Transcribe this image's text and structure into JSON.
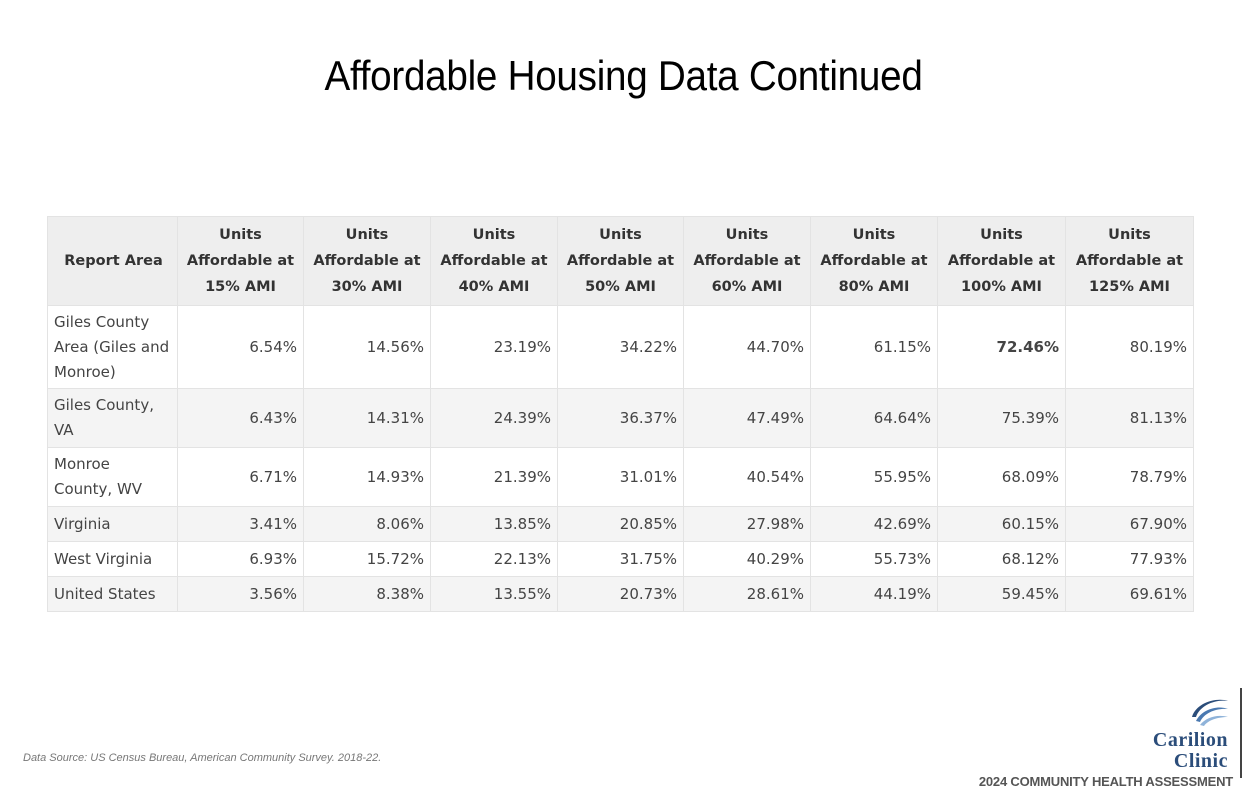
{
  "title": "Affordable Housing Data Continued",
  "table": {
    "headers": [
      "Report Area",
      "Units Affordable at 15% AMI",
      "Units Affordable at 30% AMI",
      "Units Affordable at 40% AMI",
      "Units Affordable at 50% AMI",
      "Units Affordable at 60% AMI",
      "Units Affordable at 80% AMI",
      "Units Affordable at 100% AMI",
      "Units Affordable at 125% AMI"
    ],
    "rows": [
      [
        "Giles County Area (Giles and Monroe)",
        "6.54%",
        "14.56%",
        "23.19%",
        "34.22%",
        "44.70%",
        "61.15%",
        "72.46%",
        "80.19%"
      ],
      [
        "Giles County, VA",
        "6.43%",
        "14.31%",
        "24.39%",
        "36.37%",
        "47.49%",
        "64.64%",
        "75.39%",
        "81.13%"
      ],
      [
        "Monroe County, WV",
        "6.71%",
        "14.93%",
        "21.39%",
        "31.01%",
        "40.54%",
        "55.95%",
        "68.09%",
        "78.79%"
      ],
      [
        "Virginia",
        "3.41%",
        "8.06%",
        "13.85%",
        "20.85%",
        "27.98%",
        "42.69%",
        "60.15%",
        "67.90%"
      ],
      [
        "West Virginia",
        "6.93%",
        "15.72%",
        "22.13%",
        "31.75%",
        "40.29%",
        "55.73%",
        "68.12%",
        "77.93%"
      ],
      [
        "United States",
        "3.56%",
        "8.38%",
        "13.55%",
        "20.73%",
        "28.61%",
        "44.19%",
        "59.45%",
        "69.61%"
      ]
    ]
  },
  "colors": {
    "highlight": "#6a9a3a",
    "brand": "#2b4d7a"
  },
  "source": "Data Source: US Census Bureau, American Community Survey. 2018-22.",
  "logo": {
    "line1": "Carilion",
    "line2": "Clinic",
    "icon": "carilion-swoosh-icon"
  },
  "footer": "2024 COMMUNITY HEALTH ASSESSMENT"
}
